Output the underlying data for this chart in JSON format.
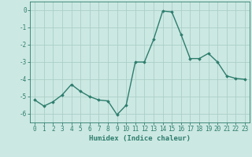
{
  "x": [
    0,
    1,
    2,
    3,
    4,
    5,
    6,
    7,
    8,
    9,
    10,
    11,
    12,
    13,
    14,
    15,
    16,
    17,
    18,
    19,
    20,
    21,
    22,
    23
  ],
  "y": [
    -5.2,
    -5.55,
    -5.3,
    -4.9,
    -4.3,
    -4.7,
    -5.0,
    -5.2,
    -5.25,
    -6.05,
    -5.5,
    -3.0,
    -3.0,
    -1.7,
    -0.05,
    -0.1,
    -1.4,
    -2.8,
    -2.8,
    -2.5,
    -3.0,
    -3.8,
    -3.95,
    -4.0
  ],
  "line_color": "#2d7d6e",
  "marker": "D",
  "marker_size": 1.8,
  "bg_color": "#cce8e2",
  "grid_color": "#aacfc8",
  "xlabel": "Humidex (Indice chaleur)",
  "xlim": [
    -0.5,
    23.5
  ],
  "ylim": [
    -6.5,
    0.5
  ],
  "yticks": [
    0,
    -1,
    -2,
    -3,
    -4,
    -5,
    -6
  ],
  "line_width": 1.0,
  "xlabel_fontsize": 6.5,
  "tick_fontsize": 5.5
}
